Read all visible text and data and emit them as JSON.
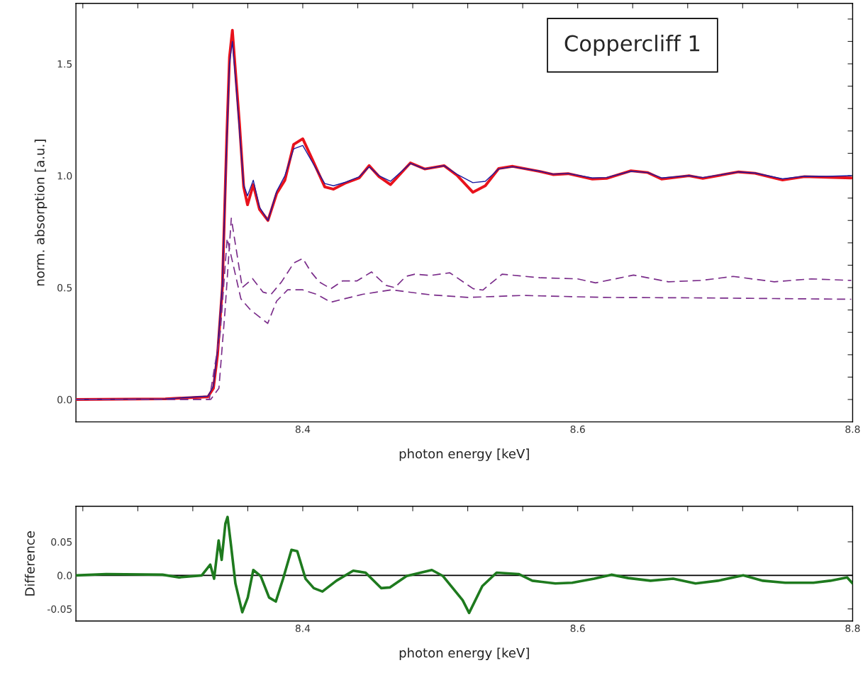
{
  "chart_data": [
    {
      "type": "line",
      "xlabel": "photon energy [keV]",
      "ylabel": "norm. absorption [a.u.]",
      "annotations": [
        "Coppercliff 1"
      ],
      "xlim": [
        8.235,
        8.8
      ],
      "ylim": [
        -0.1,
        1.77
      ],
      "xticks": [
        {
          "value": 8.24,
          "label": null
        },
        {
          "value": 8.28,
          "label": null
        },
        {
          "value": 8.32,
          "label": null
        },
        {
          "value": 8.36,
          "label": null
        },
        {
          "value": 8.4,
          "label": "8.4"
        },
        {
          "value": 8.44,
          "label": null
        },
        {
          "value": 8.48,
          "label": null
        },
        {
          "value": 8.52,
          "label": null
        },
        {
          "value": 8.56,
          "label": null
        },
        {
          "value": 8.6,
          "label": "8.6"
        },
        {
          "value": 8.64,
          "label": null
        },
        {
          "value": 8.68,
          "label": null
        },
        {
          "value": 8.72,
          "label": null
        },
        {
          "value": 8.76,
          "label": null
        },
        {
          "value": 8.8,
          "label": "8.8"
        }
      ],
      "yticks": [
        {
          "value": 0.0,
          "label": "0.0"
        },
        {
          "value": 0.1,
          "label": null
        },
        {
          "value": 0.2,
          "label": null
        },
        {
          "value": 0.3,
          "label": null
        },
        {
          "value": 0.4,
          "label": null
        },
        {
          "value": 0.5,
          "label": "0.5"
        },
        {
          "value": 0.6,
          "label": null
        },
        {
          "value": 0.7,
          "label": null
        },
        {
          "value": 0.8,
          "label": null
        },
        {
          "value": 0.9,
          "label": null
        },
        {
          "value": 1.0,
          "label": "1.0"
        },
        {
          "value": 1.1,
          "label": null
        },
        {
          "value": 1.2,
          "label": null
        },
        {
          "value": 1.3,
          "label": null
        },
        {
          "value": 1.4,
          "label": null
        },
        {
          "value": 1.5,
          "label": "1.5"
        },
        {
          "value": 1.6,
          "label": null
        },
        {
          "value": 1.7,
          "label": null
        }
      ],
      "series": [
        {
          "color": "#e8121c",
          "line_style": "solid",
          "x": [
            8.235,
            8.3,
            8.331,
            8.335,
            8.338,
            8.3415,
            8.3447,
            8.3467,
            8.3488,
            8.351,
            8.354,
            8.357,
            8.3598,
            8.364,
            8.3685,
            8.3747,
            8.381,
            8.387,
            8.3934,
            8.4,
            8.4079,
            8.416,
            8.4224,
            8.4307,
            8.441,
            8.4483,
            8.4555,
            8.4638,
            8.4783,
            8.4887,
            8.5028,
            8.5125,
            8.5237,
            8.5328,
            8.5425,
            8.5527,
            8.5725,
            8.582,
            8.593,
            8.6107,
            8.621,
            8.6387,
            8.651,
            8.661,
            8.681,
            8.691,
            8.717,
            8.729,
            8.749,
            8.765,
            8.781,
            8.799
          ],
          "values": [
            0.0,
            0.003,
            0.012,
            0.05,
            0.2,
            0.5,
            1.17,
            1.53,
            1.65,
            1.47,
            1.23,
            0.95,
            0.87,
            0.96,
            0.85,
            0.8,
            0.92,
            0.98,
            1.14,
            1.165,
            1.06,
            0.95,
            0.94,
            0.966,
            0.99,
            1.045,
            0.996,
            0.96,
            1.057,
            1.03,
            1.045,
            1.0,
            0.926,
            0.955,
            1.032,
            1.042,
            1.019,
            1.005,
            1.009,
            0.985,
            0.988,
            1.022,
            1.014,
            0.985,
            1.0,
            0.988,
            1.017,
            1.011,
            0.981,
            0.996,
            0.993,
            0.99
          ]
        },
        {
          "color": "#1a1aa0",
          "line_style": "solid",
          "x": [
            8.235,
            8.3,
            8.331,
            8.335,
            8.338,
            8.3415,
            8.3447,
            8.3467,
            8.3488,
            8.351,
            8.354,
            8.357,
            8.3598,
            8.364,
            8.3685,
            8.3747,
            8.381,
            8.387,
            8.3934,
            8.4,
            8.4079,
            8.416,
            8.4224,
            8.4307,
            8.441,
            8.4483,
            8.4555,
            8.4638,
            8.4783,
            8.4887,
            8.5028,
            8.5125,
            8.5237,
            8.5328,
            8.5425,
            8.5527,
            8.5725,
            8.582,
            8.593,
            8.6107,
            8.621,
            8.6387,
            8.651,
            8.661,
            8.681,
            8.691,
            8.717,
            8.729,
            8.749,
            8.765,
            8.781,
            8.799
          ],
          "values": [
            0.0,
            0.003,
            0.015,
            0.06,
            0.22,
            0.52,
            1.15,
            1.5,
            1.6,
            1.44,
            1.2,
            0.96,
            0.91,
            0.98,
            0.86,
            0.8,
            0.93,
            1.0,
            1.12,
            1.135,
            1.05,
            0.965,
            0.955,
            0.97,
            0.995,
            1.04,
            1.0,
            0.975,
            1.055,
            1.03,
            1.045,
            1.005,
            0.969,
            0.975,
            1.03,
            1.04,
            1.02,
            1.007,
            1.01,
            0.99,
            0.992,
            1.02,
            1.014,
            0.99,
            1.0,
            0.992,
            1.017,
            1.012,
            0.986,
            0.998,
            0.997,
            1.0
          ]
        },
        {
          "color": "#7a2c8a",
          "line_style": "dashed",
          "x": [
            8.235,
            8.3,
            8.333,
            8.339,
            8.3435,
            8.348,
            8.356,
            8.3635,
            8.371,
            8.377,
            8.3845,
            8.3935,
            8.4,
            8.406,
            8.412,
            8.4205,
            8.429,
            8.4395,
            8.45,
            8.4605,
            8.467,
            8.475,
            8.4815,
            8.4926,
            8.507,
            8.524,
            8.531,
            8.545,
            8.5725,
            8.6,
            8.613,
            8.6406,
            8.666,
            8.69,
            8.713,
            8.743,
            8.77,
            8.799
          ],
          "values": [
            0.0,
            0.0,
            0.0,
            0.05,
            0.4,
            0.81,
            0.5,
            0.54,
            0.48,
            0.47,
            0.525,
            0.61,
            0.63,
            0.57,
            0.525,
            0.495,
            0.53,
            0.53,
            0.57,
            0.51,
            0.5,
            0.55,
            0.56,
            0.554,
            0.566,
            0.495,
            0.489,
            0.56,
            0.544,
            0.539,
            0.521,
            0.556,
            0.526,
            0.532,
            0.55,
            0.526,
            0.539,
            0.532
          ]
        },
        {
          "color": "#7a2c8a",
          "line_style": "dashed",
          "x": [
            8.235,
            8.3,
            8.332,
            8.34,
            8.345,
            8.355,
            8.362,
            8.3745,
            8.381,
            8.389,
            8.4,
            8.41,
            8.4205,
            8.4435,
            8.4645,
            8.4926,
            8.52,
            8.56,
            8.62,
            8.69,
            8.743,
            8.799
          ],
          "values": [
            0.0,
            0.0,
            0.0,
            0.3,
            0.72,
            0.45,
            0.4,
            0.34,
            0.44,
            0.49,
            0.49,
            0.47,
            0.435,
            0.47,
            0.49,
            0.468,
            0.456,
            0.465,
            0.456,
            0.454,
            0.451,
            0.448
          ]
        }
      ]
    },
    {
      "type": "line",
      "xlabel": "photon energy [keV]",
      "ylabel": "Difference",
      "xlim": [
        8.235,
        8.8
      ],
      "ylim": [
        -0.068,
        0.103
      ],
      "xticks": [
        {
          "value": 8.24,
          "label": null
        },
        {
          "value": 8.28,
          "label": null
        },
        {
          "value": 8.32,
          "label": null
        },
        {
          "value": 8.36,
          "label": null
        },
        {
          "value": 8.4,
          "label": "8.4"
        },
        {
          "value": 8.44,
          "label": null
        },
        {
          "value": 8.48,
          "label": null
        },
        {
          "value": 8.52,
          "label": null
        },
        {
          "value": 8.56,
          "label": null
        },
        {
          "value": 8.6,
          "label": "8.6"
        },
        {
          "value": 8.64,
          "label": null
        },
        {
          "value": 8.68,
          "label": null
        },
        {
          "value": 8.72,
          "label": null
        },
        {
          "value": 8.76,
          "label": null
        },
        {
          "value": 8.8,
          "label": "8.8"
        }
      ],
      "yticks": [
        {
          "value": -0.05,
          "label": "-0.05"
        },
        {
          "value": 0.0,
          "label": "0.0"
        },
        {
          "value": 0.05,
          "label": "0.05"
        }
      ],
      "ref_lines": [
        {
          "axis": "y",
          "value": 0.0,
          "color": "#000000"
        }
      ],
      "series": [
        {
          "color": "#1e7a1e",
          "line_style": "solid",
          "x": [
            8.235,
            8.257,
            8.298,
            8.31,
            8.3265,
            8.3327,
            8.3355,
            8.3388,
            8.341,
            8.3437,
            8.3453,
            8.3478,
            8.351,
            8.356,
            8.36,
            8.364,
            8.3694,
            8.3755,
            8.3804,
            8.3857,
            8.3918,
            8.396,
            8.402,
            8.408,
            8.4143,
            8.4245,
            8.4367,
            8.4457,
            8.457,
            8.4633,
            8.4755,
            8.4939,
            8.502,
            8.5163,
            8.521,
            8.5306,
            8.541,
            8.557,
            8.567,
            8.5837,
            8.596,
            8.612,
            8.6245,
            8.6367,
            8.653,
            8.6694,
            8.6857,
            8.702,
            8.7204,
            8.7347,
            8.751,
            8.7714,
            8.7837,
            8.796,
            8.8
          ],
          "values": [
            0.0,
            0.002,
            0.001,
            -0.003,
            0.0,
            0.016,
            -0.005,
            0.052,
            0.023,
            0.077,
            0.087,
            0.045,
            -0.012,
            -0.055,
            -0.033,
            0.008,
            -0.001,
            -0.033,
            -0.039,
            -0.005,
            0.038,
            0.036,
            -0.005,
            -0.019,
            -0.024,
            -0.008,
            0.007,
            0.004,
            -0.019,
            -0.018,
            -0.001,
            0.008,
            -0.001,
            -0.037,
            -0.056,
            -0.016,
            0.004,
            0.002,
            -0.008,
            -0.012,
            -0.011,
            -0.005,
            0.001,
            -0.004,
            -0.008,
            -0.005,
            -0.012,
            -0.008,
            0.0,
            -0.008,
            -0.011,
            -0.011,
            -0.008,
            -0.003,
            -0.012
          ]
        }
      ]
    }
  ]
}
